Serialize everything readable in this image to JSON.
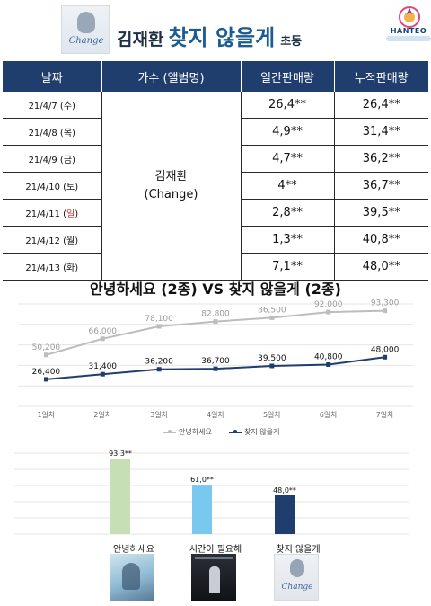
{
  "header": {
    "album_word": "Change",
    "artist": "김재환",
    "song": "찾지 않을게",
    "tag": "초동",
    "logo_text": "HANTEO"
  },
  "table": {
    "headers": [
      "날짜",
      "가수 (앨범명)",
      "일간판매량",
      "누적판매량"
    ],
    "artist_line1": "김재환",
    "artist_line2": "(Change)",
    "rows": [
      {
        "date": "21/4/7 (수)",
        "daily": "26,4**",
        "total": "26,4**"
      },
      {
        "date": "21/4/8 (목)",
        "daily": "4,9**",
        "total": "31,4**"
      },
      {
        "date": "21/4/9 (금)",
        "daily": "4,7**",
        "total": "36,2**"
      },
      {
        "date": "21/4/10 (토)",
        "daily": "4**",
        "total": "36,7**"
      },
      {
        "date_prefix": "21/4/11 (",
        "date_red": "일",
        "date_suffix": ")",
        "daily": "2,8**",
        "total": "39,5**"
      },
      {
        "date": "21/4/12 (월)",
        "daily": "1,3**",
        "total": "40,8**"
      },
      {
        "date": "21/4/13 (화)",
        "daily": "7,1**",
        "total": "48,0**"
      }
    ]
  },
  "chart_data": [
    {
      "type": "line",
      "title": "안녕하세요 (2종) VS 찾지 않을게 (2종)",
      "categories": [
        "1일차",
        "2일차",
        "3일차",
        "4일차",
        "5일차",
        "6일차",
        "7일차"
      ],
      "series": [
        {
          "name": "안녕하세요",
          "values": [
            50200,
            66000,
            78100,
            82800,
            86500,
            92000,
            93300
          ],
          "labels": [
            "50,200",
            "66,000",
            "78,100",
            "82,800",
            "86,500",
            "92,000",
            "93,300"
          ],
          "color": "#bdbdbd"
        },
        {
          "name": "찾지 않을게",
          "values": [
            26400,
            31400,
            36200,
            36700,
            39500,
            40800,
            48000
          ],
          "labels": [
            "26,400",
            "31,400",
            "36,200",
            "36,700",
            "39,500",
            "40,800",
            "48,000"
          ],
          "color": "#1f3d6d"
        }
      ],
      "ylim": [
        0,
        100000
      ],
      "grid": true,
      "legend": "bottom"
    },
    {
      "type": "bar",
      "categories": [
        "안녕하세요",
        "시간이 필요해",
        "찾지 않을게"
      ],
      "values": [
        93300,
        61000,
        48000
      ],
      "value_labels": [
        "93,3**",
        "61,0**",
        "48,0**"
      ],
      "colors": [
        "#c6dfb4",
        "#78c8ef",
        "#1f3d6d"
      ],
      "ylim": [
        0,
        100000
      ],
      "grid": true
    }
  ]
}
